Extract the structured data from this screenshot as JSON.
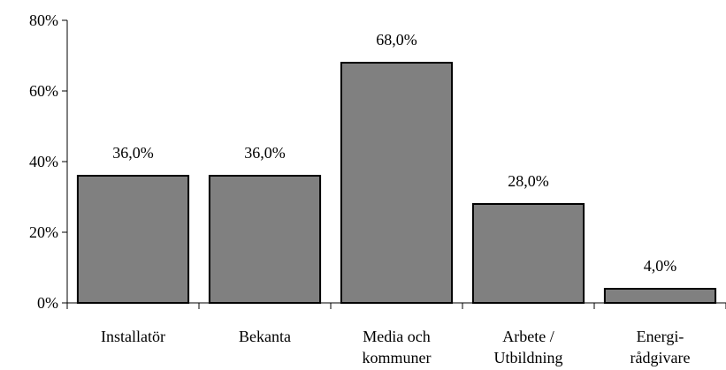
{
  "chart_data": {
    "type": "bar",
    "categories": [
      "Installatör",
      "Bekanta",
      "Media och\nkommuner",
      "Arbete /\nUtbildning",
      "Energi-\nrådgivare"
    ],
    "values": [
      36,
      36,
      68,
      28,
      4
    ],
    "value_labels": [
      "36,0%",
      "36,0%",
      "68,0%",
      "28,0%",
      "4,0%"
    ],
    "color": "#808080",
    "ylim": [
      0,
      80
    ],
    "yticks": [
      {
        "value": 0,
        "label": "0%"
      },
      {
        "value": 20,
        "label": "20%"
      },
      {
        "value": 40,
        "label": "40%"
      },
      {
        "value": 60,
        "label": "60%"
      },
      {
        "value": 80,
        "label": "80%"
      }
    ]
  }
}
